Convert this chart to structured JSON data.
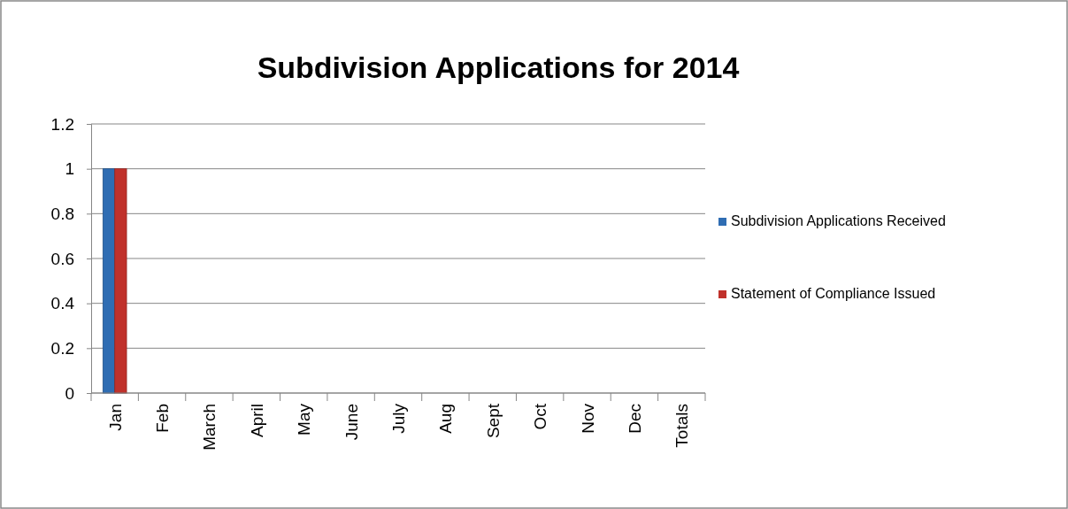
{
  "chart_data": {
    "type": "bar",
    "title": "Subdivision Applications for 2014",
    "categories": [
      "Jan",
      "Feb",
      "March",
      "April",
      "May",
      "June",
      "July",
      "Aug",
      "Sept",
      "Oct",
      "Nov",
      "Dec",
      "Totals"
    ],
    "series": [
      {
        "name": "Subdivision Applications Received",
        "color": "#2f6db3",
        "values": [
          1,
          0,
          0,
          0,
          0,
          0,
          0,
          0,
          0,
          0,
          0,
          0,
          0
        ]
      },
      {
        "name": "Statement of Compliance Issued",
        "color": "#c0312b",
        "values": [
          1,
          0,
          0,
          0,
          0,
          0,
          0,
          0,
          0,
          0,
          0,
          0,
          0
        ]
      }
    ],
    "ylim": [
      0,
      1.2
    ],
    "yticks": [
      0,
      0.2,
      0.4,
      0.6,
      0.8,
      1,
      1.2
    ],
    "grid": "y",
    "legend": "right"
  }
}
